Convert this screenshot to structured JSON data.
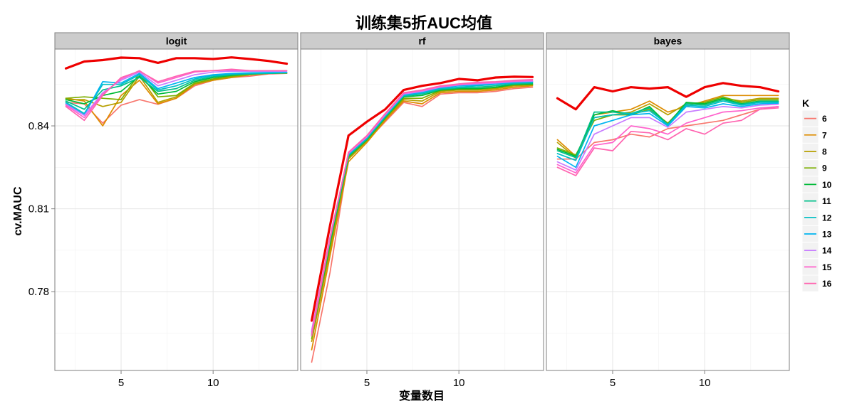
{
  "chart_data": {
    "type": "line",
    "title": "训练集5折AUC均值",
    "xlabel": "变量数目",
    "ylabel": "cv.MAUC",
    "x": [
      2,
      3,
      4,
      5,
      6,
      7,
      8,
      9,
      10,
      11,
      12,
      13,
      14
    ],
    "xlim": [
      1.4,
      14.6
    ],
    "ylim": [
      0.7515,
      0.8678
    ],
    "x_ticks": [
      5,
      10
    ],
    "y_ticks": [
      0.78,
      0.81,
      0.84
    ],
    "grid": true,
    "legend": {
      "title": "K",
      "position": "right",
      "labels": [
        "6",
        "7",
        "8",
        "9",
        "10",
        "11",
        "12",
        "13",
        "14",
        "15",
        "16"
      ]
    },
    "colors": {
      "6": "#F8766D",
      "7": "#DE8C00",
      "8": "#B79F00",
      "9": "#7CAE00",
      "10": "#00BA38",
      "11": "#00C08B",
      "12": "#00BFC4",
      "13": "#00B4F0",
      "14": "#C77CFF",
      "15": "#FF61CC",
      "16": "#FF64B0",
      "best": "#EE0000"
    },
    "panels": [
      {
        "name": "logit",
        "series": [
          {
            "name": "6",
            "values": [
              0.8485,
              0.848,
              0.841,
              0.8475,
              0.8495,
              0.8478,
              0.85,
              0.8545,
              0.8565,
              0.8575,
              0.858,
              0.8588,
              0.859
            ]
          },
          {
            "name": "7",
            "values": [
              0.85,
              0.849,
              0.84,
              0.851,
              0.8565,
              0.848,
              0.85,
              0.855,
              0.8565,
              0.8575,
              0.8585,
              0.859,
              0.8592
            ]
          },
          {
            "name": "8",
            "values": [
              0.8495,
              0.8495,
              0.847,
              0.8485,
              0.858,
              0.8485,
              0.8505,
              0.8552,
              0.8568,
              0.8577,
              0.8585,
              0.859,
              0.859
            ]
          },
          {
            "name": "9",
            "values": [
              0.85,
              0.8505,
              0.85,
              0.8495,
              0.859,
              0.8505,
              0.851,
              0.8555,
              0.857,
              0.858,
              0.8588,
              0.859,
              0.8592
            ]
          },
          {
            "name": "10",
            "values": [
              0.8495,
              0.848,
              0.851,
              0.8525,
              0.858,
              0.8515,
              0.8525,
              0.856,
              0.8575,
              0.8583,
              0.8588,
              0.859,
              0.8592
            ]
          },
          {
            "name": "11",
            "values": [
              0.849,
              0.846,
              0.853,
              0.8545,
              0.8575,
              0.8525,
              0.8535,
              0.8565,
              0.8578,
              0.8585,
              0.8588,
              0.859,
              0.8592
            ]
          },
          {
            "name": "12",
            "values": [
              0.8485,
              0.8445,
              0.855,
              0.855,
              0.8585,
              0.853,
              0.8545,
              0.857,
              0.8582,
              0.8588,
              0.859,
              0.8592,
              0.8592
            ]
          },
          {
            "name": "13",
            "values": [
              0.848,
              0.844,
              0.856,
              0.8555,
              0.859,
              0.8535,
              0.8555,
              0.8575,
              0.8585,
              0.859,
              0.8592,
              0.8593,
              0.8593
            ]
          },
          {
            "name": "14",
            "values": [
              0.8478,
              0.8438,
              0.852,
              0.8565,
              0.8595,
              0.8545,
              0.8565,
              0.8585,
              0.8595,
              0.8598,
              0.8598,
              0.8598,
              0.8598
            ]
          },
          {
            "name": "15",
            "values": [
              0.8475,
              0.843,
              0.8515,
              0.857,
              0.86,
              0.8555,
              0.8575,
              0.8595,
              0.86,
              0.8602,
              0.86,
              0.86,
              0.86
            ]
          },
          {
            "name": "16",
            "values": [
              0.847,
              0.842,
              0.851,
              0.8575,
              0.8598,
              0.856,
              0.858,
              0.8598,
              0.86,
              0.8605,
              0.86,
              0.86,
              0.86
            ]
          },
          {
            "name": "",
            "values": [
              0.8608,
              0.8633,
              0.8638,
              0.8647,
              0.8645,
              0.8628,
              0.8645,
              0.8645,
              0.8642,
              0.8648,
              0.8642,
              0.8635,
              0.8625
            ]
          }
        ]
      },
      {
        "name": "rf",
        "series": [
          {
            "name": "6",
            "values": [
              0.7545,
              0.787,
              0.8285,
              0.8345,
              0.8415,
              0.8485,
              0.847,
              0.8515,
              0.852,
              0.852,
              0.8525,
              0.8535,
              0.854
            ]
          },
          {
            "name": "7",
            "values": [
              0.759,
              0.793,
              0.827,
              0.834,
              0.842,
              0.849,
              0.848,
              0.852,
              0.8525,
              0.8525,
              0.853,
              0.854,
              0.8545
            ]
          },
          {
            "name": "8",
            "values": [
              0.762,
              0.795,
              0.828,
              0.8345,
              0.8425,
              0.8495,
              0.849,
              0.8525,
              0.853,
              0.853,
              0.8535,
              0.8545,
              0.8548
            ]
          },
          {
            "name": "9",
            "values": [
              0.763,
              0.7965,
              0.8285,
              0.8348,
              0.8428,
              0.85,
              0.85,
              0.8528,
              0.8532,
              0.8532,
              0.8538,
              0.8548,
              0.855
            ]
          },
          {
            "name": "10",
            "values": [
              0.764,
              0.7975,
              0.829,
              0.835,
              0.843,
              0.8505,
              0.851,
              0.853,
              0.8535,
              0.8535,
              0.854,
              0.855,
              0.8552
            ]
          },
          {
            "name": "11",
            "values": [
              0.7645,
              0.7985,
              0.8292,
              0.8352,
              0.8432,
              0.8508,
              0.8515,
              0.8532,
              0.8538,
              0.854,
              0.8545,
              0.8552,
              0.8555
            ]
          },
          {
            "name": "12",
            "values": [
              0.765,
              0.799,
              0.8295,
              0.8355,
              0.8435,
              0.851,
              0.8518,
              0.8535,
              0.854,
              0.8545,
              0.855,
              0.8555,
              0.8558
            ]
          },
          {
            "name": "13",
            "values": [
              0.7655,
              0.7995,
              0.8298,
              0.8358,
              0.8438,
              0.8512,
              0.8522,
              0.8538,
              0.8545,
              0.8548,
              0.8552,
              0.8558,
              0.856
            ]
          },
          {
            "name": "14",
            "values": [
              0.766,
              0.8,
              0.83,
              0.836,
              0.844,
              0.8515,
              0.8525,
              0.854,
              0.8548,
              0.8552,
              0.8555,
              0.856,
              0.8562
            ]
          },
          {
            "name": "15",
            "values": [
              0.765,
              0.7995,
              0.8302,
              0.8362,
              0.8442,
              0.8518,
              0.8528,
              0.8542,
              0.855,
              0.8555,
              0.8558,
              0.8562,
              0.8565
            ]
          },
          {
            "name": "16",
            "values": [
              0.764,
              0.799,
              0.8305,
              0.8365,
              0.8445,
              0.852,
              0.853,
              0.8545,
              0.8552,
              0.8558,
              0.856,
              0.8565,
              0.8568
            ]
          },
          {
            "name": "",
            "values": [
              0.7695,
              0.804,
              0.8365,
              0.8415,
              0.846,
              0.853,
              0.8545,
              0.8555,
              0.857,
              0.8565,
              0.8575,
              0.8578,
              0.8577
            ]
          }
        ]
      },
      {
        "name": "bayes",
        "series": [
          {
            "name": "6",
            "values": [
              0.828,
              0.828,
              0.834,
              0.835,
              0.837,
              0.836,
              0.839,
              0.84,
              0.841,
              0.842,
              0.844,
              0.846,
              0.847
            ]
          },
          {
            "name": "7",
            "values": [
              0.835,
              0.829,
              0.844,
              0.845,
              0.846,
              0.849,
              0.845,
              0.847,
              0.849,
              0.851,
              0.851,
              0.851,
              0.851
            ]
          },
          {
            "name": "8",
            "values": [
              0.834,
              0.8285,
              0.843,
              0.844,
              0.845,
              0.848,
              0.844,
              0.848,
              0.848,
              0.85,
              0.849,
              0.85,
              0.85
            ]
          },
          {
            "name": "9",
            "values": [
              0.832,
              0.8295,
              0.842,
              0.844,
              0.844,
              0.846,
              0.841,
              0.848,
              0.8485,
              0.8505,
              0.8485,
              0.8495,
              0.8495
            ]
          },
          {
            "name": "10",
            "values": [
              0.8315,
              0.829,
              0.844,
              0.8455,
              0.844,
              0.847,
              0.8405,
              0.8485,
              0.848,
              0.85,
              0.848,
              0.849,
              0.849
            ]
          },
          {
            "name": "11",
            "values": [
              0.831,
              0.8285,
              0.845,
              0.845,
              0.8445,
              0.8465,
              0.84,
              0.848,
              0.8475,
              0.8495,
              0.8478,
              0.8488,
              0.8488
            ]
          },
          {
            "name": "12",
            "values": [
              0.83,
              0.8275,
              0.843,
              0.844,
              0.8445,
              0.8455,
              0.8405,
              0.8475,
              0.847,
              0.849,
              0.8475,
              0.8485,
              0.8485
            ]
          },
          {
            "name": "13",
            "values": [
              0.829,
              0.825,
              0.84,
              0.842,
              0.844,
              0.8445,
              0.84,
              0.847,
              0.8465,
              0.848,
              0.847,
              0.848,
              0.8482
            ]
          },
          {
            "name": "14",
            "values": [
              0.827,
              0.824,
              0.837,
              0.84,
              0.843,
              0.843,
              0.8395,
              0.845,
              0.846,
              0.847,
              0.8465,
              0.8475,
              0.8478
            ]
          },
          {
            "name": "15",
            "values": [
              0.826,
              0.823,
              0.833,
              0.834,
              0.84,
              0.839,
              0.837,
              0.841,
              0.843,
              0.845,
              0.8455,
              0.8465,
              0.847
            ]
          },
          {
            "name": "16",
            "values": [
              0.825,
              0.822,
              0.832,
              0.831,
              0.838,
              0.8375,
              0.835,
              0.839,
              0.837,
              0.841,
              0.842,
              0.846,
              0.8465
            ]
          },
          {
            "name": "",
            "values": [
              0.85,
              0.846,
              0.854,
              0.8525,
              0.854,
              0.8535,
              0.854,
              0.8505,
              0.854,
              0.8555,
              0.8545,
              0.854,
              0.8525
            ]
          }
        ]
      }
    ]
  }
}
